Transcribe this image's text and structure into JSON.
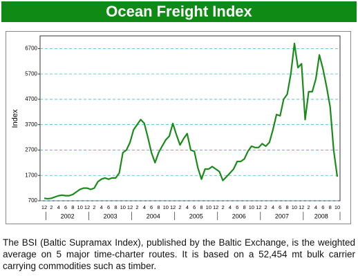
{
  "chart_data": {
    "type": "line",
    "title": "Ocean Freight Index",
    "y_label": "Index",
    "caption": "The BSI (Baltic Supramax Index), published by the Baltic Exchange, is the weighted average on 5 major time-charter routes. It is based on a 52,454 mt bulk carrier carrying commodities such as timber.",
    "categories": [
      "12",
      null,
      "2",
      null,
      "4",
      null,
      "6",
      null,
      "8",
      null,
      "10",
      null,
      "12",
      null,
      "2",
      null,
      "4",
      null,
      "6",
      null,
      "8",
      null,
      "10",
      null,
      "12",
      null,
      "2",
      null,
      "4",
      null,
      "6",
      null,
      "8",
      null,
      "10",
      null,
      "12",
      null,
      "2",
      null,
      "4",
      null,
      "6",
      null,
      "8",
      null,
      "10",
      null,
      "12",
      null,
      "2",
      null,
      "4",
      null,
      "6",
      null,
      "8",
      null,
      "10",
      null,
      "12",
      null,
      "2",
      null,
      "4",
      null,
      "6",
      null,
      "8",
      null,
      "10",
      null,
      "12",
      null,
      "2",
      null,
      "4",
      null,
      "6",
      null,
      "8",
      null,
      "10"
    ],
    "year_labels": [
      "2002",
      "2003",
      "2004",
      "2005",
      "2006",
      "2007",
      "2008"
    ],
    "series": [
      {
        "name": "BSI",
        "color": "#1a8a1a",
        "values": [
          800,
          780,
          800,
          850,
          900,
          920,
          900,
          900,
          950,
          1050,
          1150,
          1200,
          1200,
          1150,
          1200,
          1450,
          1550,
          1600,
          1550,
          1600,
          1600,
          1800,
          2600,
          2700,
          3000,
          3500,
          3700,
          3900,
          3750,
          3200,
          2600,
          2200,
          2600,
          2850,
          3100,
          3250,
          3750,
          3300,
          2900,
          3150,
          3350,
          2700,
          2650,
          2000,
          1550,
          1950,
          1950,
          2050,
          1950,
          1850,
          1500,
          1650,
          1800,
          1950,
          2250,
          2250,
          2350,
          2650,
          2850,
          2800,
          2800,
          2950,
          2850,
          3000,
          3500,
          4100,
          4050,
          4700,
          4900,
          5700,
          6900,
          5950,
          6100,
          3900,
          5000,
          5000,
          5500,
          6450,
          5900,
          5200,
          4400,
          2700,
          1650
        ]
      }
    ],
    "ylim": [
      700,
      7200
    ],
    "yticks": [
      700,
      1700,
      2700,
      3700,
      4700,
      5700,
      6700
    ],
    "grid": true
  }
}
